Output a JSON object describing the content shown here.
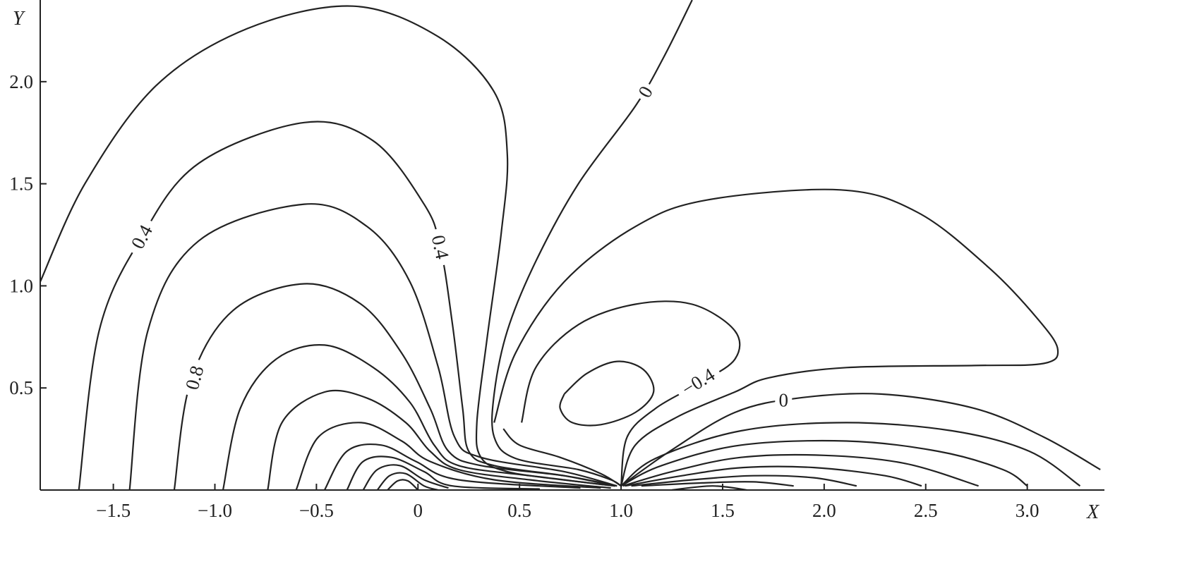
{
  "chart_data": {
    "type": "contour",
    "title": "",
    "xlabel": "X",
    "ylabel": "Y",
    "xlim": [
      -1.86,
      3.38
    ],
    "ylim": [
      0,
      2.4
    ],
    "grid": false,
    "xticks": [
      -1.5,
      -1.0,
      -0.5,
      0,
      0.5,
      1.0,
      1.5,
      2.0,
      2.5,
      3.0
    ],
    "xtick_labels": [
      "−1.5",
      "−1.0",
      "−0.5",
      "0",
      "0.5",
      "1.0",
      "1.5",
      "2.0",
      "2.5",
      "3.0"
    ],
    "yticks": [
      0.5,
      1.0,
      1.5,
      2.0
    ],
    "ytick_labels": [
      "0.5",
      "1.0",
      "1.5",
      "2.0"
    ],
    "line_color": "#222222",
    "contours": [
      {
        "points": [
          [
            -1.86,
            1.02
          ],
          [
            -1.64,
            1.5
          ],
          [
            -1.29,
            1.98
          ],
          [
            -0.84,
            2.26
          ],
          [
            -0.32,
            2.37
          ],
          [
            0.1,
            2.22
          ],
          [
            0.375,
            1.95
          ],
          [
            0.44,
            1.64
          ],
          [
            0.41,
            1.26
          ],
          [
            0.34,
            0.74
          ],
          [
            0.29,
            0.33
          ],
          [
            0.31,
            0.16
          ],
          [
            0.44,
            0.09
          ],
          [
            0.72,
            0.05
          ],
          [
            0.97,
            0.02
          ]
        ]
      },
      {
        "points": [
          [
            -1.67,
            0
          ],
          [
            -1.57,
            0.78
          ],
          [
            -1.36,
            1.24
          ],
          [
            -1.08,
            1.6
          ],
          [
            -0.56,
            1.8
          ],
          [
            -0.22,
            1.71
          ],
          [
            0.03,
            1.4
          ],
          [
            0.11,
            1.19
          ],
          [
            0.17,
            0.81
          ],
          [
            0.22,
            0.4
          ],
          [
            0.25,
            0.19
          ],
          [
            0.375,
            0.12
          ],
          [
            0.72,
            0.07
          ],
          [
            0.97,
            0.02
          ]
        ]
      },
      {
        "points": [
          [
            -1.42,
            0
          ],
          [
            -1.33,
            0.78
          ],
          [
            -1.08,
            1.22
          ],
          [
            -0.56,
            1.4
          ],
          [
            -0.25,
            1.29
          ],
          [
            -0.04,
            1.02
          ],
          [
            0.1,
            0.6
          ],
          [
            0.18,
            0.26
          ],
          [
            0.31,
            0.16
          ],
          [
            0.72,
            0.09
          ],
          [
            0.98,
            0.02
          ]
        ]
      },
      {
        "points": [
          [
            -1.2,
            0
          ],
          [
            -1.12,
            0.53
          ],
          [
            -0.91,
            0.88
          ],
          [
            -0.56,
            1.01
          ],
          [
            -0.28,
            0.91
          ],
          [
            -0.08,
            0.67
          ],
          [
            0.06,
            0.4
          ],
          [
            0.15,
            0.19
          ],
          [
            0.31,
            0.12
          ],
          [
            0.72,
            0.07
          ],
          [
            0.98,
            0.02
          ]
        ]
      },
      {
        "points": [
          [
            -0.96,
            0
          ],
          [
            -0.875,
            0.4
          ],
          [
            -0.7,
            0.64
          ],
          [
            -0.46,
            0.71
          ],
          [
            -0.22,
            0.6
          ],
          [
            -0.04,
            0.43
          ],
          [
            0.08,
            0.22
          ],
          [
            0.2,
            0.12
          ],
          [
            0.55,
            0.07
          ],
          [
            0.97,
            0.02
          ]
        ]
      },
      {
        "points": [
          [
            -0.74,
            0
          ],
          [
            -0.67,
            0.33
          ],
          [
            -0.46,
            0.48
          ],
          [
            -0.25,
            0.45
          ],
          [
            -0.06,
            0.33
          ],
          [
            0.06,
            0.19
          ],
          [
            0.2,
            0.1
          ],
          [
            0.55,
            0.05
          ],
          [
            0.95,
            0.01
          ]
        ]
      },
      {
        "points": [
          [
            -0.6,
            0
          ],
          [
            -0.49,
            0.26
          ],
          [
            -0.28,
            0.33
          ],
          [
            -0.08,
            0.24
          ],
          [
            0.06,
            0.14
          ],
          [
            0.375,
            0.05
          ],
          [
            0.9,
            0.01
          ]
        ]
      },
      {
        "points": [
          [
            -0.46,
            0
          ],
          [
            -0.35,
            0.19
          ],
          [
            -0.18,
            0.22
          ],
          [
            -0.01,
            0.14
          ],
          [
            0.2,
            0.05
          ],
          [
            0.8,
            0.01
          ]
        ]
      },
      {
        "points": [
          [
            -0.35,
            0
          ],
          [
            -0.27,
            0.14
          ],
          [
            -0.13,
            0.16
          ],
          [
            0.03,
            0.09
          ],
          [
            0.17,
            0.02
          ],
          [
            0.6,
            0.005
          ]
        ]
      },
      {
        "points": [
          [
            -0.27,
            0
          ],
          [
            -0.2,
            0.1
          ],
          [
            -0.09,
            0.12
          ],
          [
            0.03,
            0.05
          ],
          [
            0.15,
            0.01
          ]
        ]
      },
      {
        "points": [
          [
            -0.2,
            0
          ],
          [
            -0.14,
            0.07
          ],
          [
            -0.06,
            0.08
          ],
          [
            0.03,
            0.02
          ],
          [
            0.1,
            0
          ]
        ]
      },
      {
        "points": [
          [
            -0.15,
            0
          ],
          [
            -0.1,
            0.045
          ],
          [
            -0.05,
            0.045
          ],
          [
            0,
            0
          ]
        ]
      },
      {
        "points": [
          [
            1.35,
            2.4
          ],
          [
            1.21,
            2.12
          ],
          [
            1.07,
            1.88
          ],
          [
            0.79,
            1.5
          ],
          [
            0.58,
            1.12
          ],
          [
            0.44,
            0.78
          ],
          [
            0.375,
            0.47
          ],
          [
            0.375,
            0.26
          ],
          [
            0.48,
            0.155
          ],
          [
            0.79,
            0.1
          ],
          [
            0.95,
            0.05
          ],
          [
            1.0,
            0.02
          ]
        ]
      },
      {
        "points": [
          [
            1.0,
            0.02
          ],
          [
            1.24,
            0.19
          ],
          [
            1.56,
            0.38
          ],
          [
            1.87,
            0.45
          ],
          [
            2.28,
            0.47
          ],
          [
            2.74,
            0.4
          ],
          [
            3.08,
            0.26
          ],
          [
            3.36,
            0.1
          ]
        ]
      },
      {
        "points": [
          [
            0.375,
            0.33
          ],
          [
            0.48,
            0.67
          ],
          [
            0.72,
            1.02
          ],
          [
            1.07,
            1.29
          ],
          [
            1.42,
            1.42
          ],
          [
            2.08,
            1.47
          ],
          [
            2.46,
            1.36
          ],
          [
            2.81,
            1.09
          ],
          [
            3.05,
            0.84
          ],
          [
            3.15,
            0.69
          ],
          [
            3.08,
            0.62
          ],
          [
            2.74,
            0.61
          ],
          [
            2.11,
            0.6
          ],
          [
            1.73,
            0.55
          ],
          [
            1.56,
            0.48
          ],
          [
            1.28,
            0.36
          ],
          [
            1.07,
            0.22
          ],
          [
            1.0,
            0.02
          ]
        ]
      },
      {
        "points": [
          [
            0.51,
            0.33
          ],
          [
            0.58,
            0.6
          ],
          [
            0.79,
            0.81
          ],
          [
            1.07,
            0.91
          ],
          [
            1.35,
            0.91
          ],
          [
            1.56,
            0.78
          ],
          [
            1.56,
            0.64
          ],
          [
            1.38,
            0.52
          ],
          [
            1.17,
            0.4
          ],
          [
            1.03,
            0.26
          ],
          [
            1.0,
            0.02
          ]
        ]
      },
      {
        "points": [
          [
            0.72,
            0.47
          ],
          [
            0.83,
            0.57
          ],
          [
            0.98,
            0.63
          ],
          [
            1.11,
            0.59
          ],
          [
            1.16,
            0.48
          ],
          [
            1.07,
            0.38
          ],
          [
            0.9,
            0.32
          ],
          [
            0.76,
            0.33
          ],
          [
            0.7,
            0.4
          ],
          [
            0.72,
            0.47
          ]
        ]
      },
      {
        "points": [
          [
            0.42,
            0.3
          ],
          [
            0.5,
            0.22
          ],
          [
            0.7,
            0.16
          ],
          [
            0.9,
            0.08
          ],
          [
            1.0,
            0.02
          ]
        ]
      },
      {
        "points": [
          [
            1.0,
            0.02
          ],
          [
            1.17,
            0.155
          ],
          [
            1.59,
            0.29
          ],
          [
            2.11,
            0.33
          ],
          [
            2.63,
            0.29
          ],
          [
            3.01,
            0.19
          ],
          [
            3.26,
            0.02
          ]
        ]
      },
      {
        "points": [
          [
            1.0,
            0.02
          ],
          [
            1.2,
            0.12
          ],
          [
            1.59,
            0.22
          ],
          [
            2.11,
            0.24
          ],
          [
            2.56,
            0.19
          ],
          [
            2.88,
            0.1
          ],
          [
            3.0,
            0.02
          ]
        ]
      },
      {
        "points": [
          [
            1.01,
            0.02
          ],
          [
            1.25,
            0.09
          ],
          [
            1.59,
            0.16
          ],
          [
            2.0,
            0.17
          ],
          [
            2.4,
            0.13
          ],
          [
            2.76,
            0.02
          ]
        ]
      },
      {
        "points": [
          [
            1.02,
            0.02
          ],
          [
            1.3,
            0.07
          ],
          [
            1.6,
            0.11
          ],
          [
            1.95,
            0.11
          ],
          [
            2.3,
            0.07
          ],
          [
            2.48,
            0.02
          ]
        ]
      },
      {
        "points": [
          [
            1.05,
            0.02
          ],
          [
            1.35,
            0.05
          ],
          [
            1.65,
            0.07
          ],
          [
            1.95,
            0.06
          ],
          [
            2.16,
            0.02
          ]
        ]
      },
      {
        "points": [
          [
            1.1,
            0.02
          ],
          [
            1.4,
            0.035
          ],
          [
            1.65,
            0.04
          ],
          [
            1.85,
            0.02
          ]
        ]
      },
      {
        "points": [
          [
            1.25,
            0.0
          ],
          [
            1.45,
            0.02
          ],
          [
            1.62,
            0.0
          ]
        ]
      }
    ],
    "contour_labels": [
      {
        "text": "0.4",
        "x": -1.36,
        "y": 1.24,
        "angle": -62
      },
      {
        "text": "0.4",
        "x": 0.11,
        "y": 1.19,
        "angle": 78
      },
      {
        "text": "0.8",
        "x": -1.1,
        "y": 0.55,
        "angle": -75
      },
      {
        "text": "0",
        "x": 1.12,
        "y": 1.95,
        "angle": -60
      },
      {
        "text": "−0.4",
        "x": 1.38,
        "y": 0.53,
        "angle": -32
      },
      {
        "text": "0",
        "x": 1.8,
        "y": 0.44,
        "angle": 0
      }
    ]
  }
}
